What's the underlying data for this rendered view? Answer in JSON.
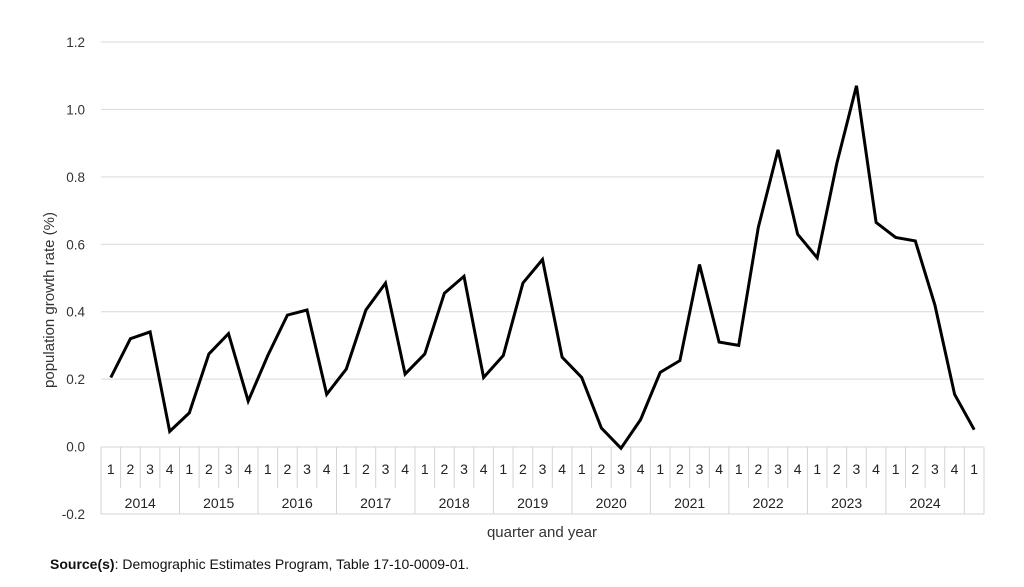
{
  "chart_data": {
    "type": "line",
    "title": "",
    "xlabel": "quarter and year",
    "ylabel": "population growth rate (%)",
    "ylim": [
      -0.2,
      1.2
    ],
    "yticks": [
      "-0.2",
      "0.0",
      "0.2",
      "0.4",
      "0.6",
      "0.8",
      "1.0",
      "1.2"
    ],
    "grid": true,
    "legend": "none",
    "years": [
      "2014",
      "2015",
      "2016",
      "2017",
      "2018",
      "2019",
      "2020",
      "2021",
      "2022",
      "2023",
      "2024"
    ],
    "quarters": [
      "1",
      "2",
      "3",
      "4",
      "1",
      "2",
      "3",
      "4",
      "1",
      "2",
      "3",
      "4",
      "1",
      "2",
      "3",
      "4",
      "1",
      "2",
      "3",
      "4",
      "1",
      "2",
      "3",
      "4",
      "1",
      "2",
      "3",
      "4",
      "1",
      "2",
      "3",
      "4",
      "1",
      "2",
      "3",
      "4",
      "1",
      "2",
      "3",
      "4",
      "1",
      "2",
      "3",
      "4",
      "1"
    ],
    "series": [
      {
        "color": "#000000",
        "values": [
          0.205,
          0.32,
          0.34,
          0.045,
          0.1,
          0.275,
          0.335,
          0.135,
          0.27,
          0.39,
          0.405,
          0.155,
          0.23,
          0.405,
          0.485,
          0.215,
          0.275,
          0.455,
          0.505,
          0.205,
          0.27,
          0.485,
          0.555,
          0.265,
          0.205,
          0.055,
          -0.005,
          0.08,
          0.22,
          0.255,
          0.54,
          0.31,
          0.3,
          0.65,
          0.88,
          0.63,
          0.56,
          0.84,
          1.07,
          0.665,
          0.62,
          0.61,
          0.42,
          0.155,
          0.05
        ]
      }
    ]
  },
  "source": {
    "label": "Source(s)",
    "text": ": Demographic Estimates Program, Table 17-10-0009-01."
  }
}
